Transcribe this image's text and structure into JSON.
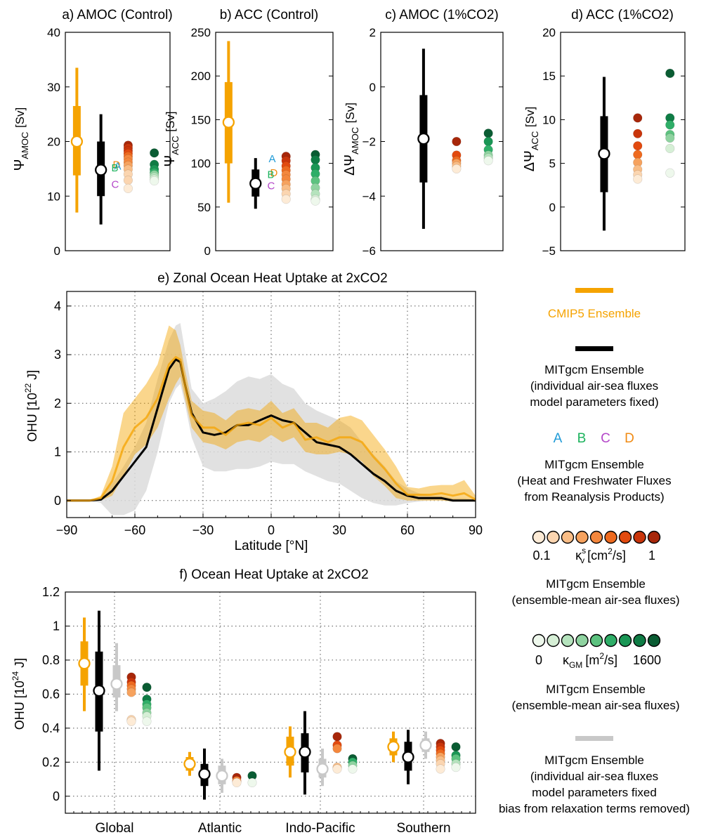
{
  "colors": {
    "cmip5": "#f5a300",
    "mitgcm": "#000000",
    "nobias": "#c8c8c8",
    "band_cmip5": "#f5a300",
    "band_nobias": "#dcdcdc",
    "A": "#1f9bd7",
    "B": "#1bb25c",
    "C": "#b447c9",
    "D": "#f08a12",
    "kv_scale": [
      "#fdebd6",
      "#fbd5b0",
      "#f9bd86",
      "#f6a25e",
      "#f4873d",
      "#ee6a1f",
      "#e24a0f",
      "#c9350b",
      "#a7270a"
    ],
    "kgm_scale": [
      "#eef8ec",
      "#d6efd6",
      "#b5e3bd",
      "#8fd3a0",
      "#5cc27f",
      "#2fae68",
      "#1a9655",
      "#0f7c45",
      "#0a5c33"
    ]
  },
  "chart_data": [
    {
      "id": "a",
      "type": "box-dot",
      "title": "a) AMOC (Control)",
      "ylabel": "Ψ_AMOC [Sv]",
      "ylabel_main": "Ψ",
      "ylabel_sub": "AMOC",
      "ylabel_unit": "[Sv]",
      "ylim": [
        0,
        40
      ],
      "yticks": [
        0,
        10,
        20,
        30,
        40
      ],
      "cmip5": {
        "whisker": [
          7,
          33.5
        ],
        "box": [
          13.8,
          26.5
        ],
        "mid": 20
      },
      "mitgcm": {
        "whisker": [
          4.8,
          25
        ],
        "box": [
          10,
          20
        ],
        "mid": 14.8
      },
      "labels": [
        {
          "text": "D",
          "y": 15.9
        },
        {
          "text": "A",
          "y": 15.6
        },
        {
          "text": "B",
          "y": 15.3
        },
        {
          "text": "C",
          "y": 12.3
        }
      ],
      "kv_points": [
        19.3,
        18.8,
        18.3,
        17.8,
        17.3,
        16.8,
        16.2,
        15.6,
        14.9,
        14.0,
        12.9,
        11.4
      ],
      "kgm_points": [
        17.9,
        15.8,
        14.9,
        14.3,
        13.9,
        13.5,
        13.1,
        12.8
      ]
    },
    {
      "id": "b",
      "type": "box-dot",
      "title": "b) ACC (Control)",
      "ylabel": "Ψ_ACC [Sv]",
      "ylabel_main": "Ψ",
      "ylabel_sub": "ACC",
      "ylabel_unit": "[Sv]",
      "ylim": [
        0,
        250
      ],
      "yticks": [
        0,
        50,
        100,
        150,
        200,
        250
      ],
      "cmip5": {
        "whisker": [
          55,
          240
        ],
        "box": [
          100,
          193
        ],
        "mid": 147
      },
      "mitgcm": {
        "whisker": [
          48,
          106
        ],
        "box": [
          62,
          93
        ],
        "mid": 77
      },
      "labels": [
        {
          "text": "A",
          "y": 106
        },
        {
          "text": "D",
          "y": 90
        },
        {
          "text": "B",
          "y": 88
        },
        {
          "text": "C",
          "y": 75
        }
      ],
      "kv_points": [
        108,
        103,
        97,
        92,
        87,
        82,
        76,
        71,
        65,
        59
      ],
      "kgm_points": [
        110,
        104,
        95,
        88,
        80,
        72,
        65,
        59,
        57
      ]
    },
    {
      "id": "c",
      "type": "box-dot",
      "title": "c) AMOC (1%CO2)",
      "ylabel": "ΔΨ_AMOC [Sv]",
      "ylabel_main": "ΔΨ",
      "ylabel_sub": "AMOC",
      "ylabel_unit": "[Sv]",
      "ylim": [
        -6,
        2
      ],
      "yticks": [
        -6,
        -4,
        -2,
        0,
        2
      ],
      "cmip5": null,
      "mitgcm": {
        "whisker": [
          -5.2,
          1.4
        ],
        "box": [
          -3.5,
          -0.3
        ],
        "mid": -1.9
      },
      "labels": [],
      "kv_points": [
        -2.0,
        -2.5,
        -2.7,
        -2.8,
        -2.9,
        -3.0
      ],
      "kgm_points": [
        -1.7,
        -2.0,
        -2.3,
        -2.5,
        -2.6,
        -2.7
      ]
    },
    {
      "id": "d",
      "type": "box-dot",
      "title": "d) ACC (1%CO2)",
      "ylabel": "ΔΨ_ACC [Sv]",
      "ylabel_main": "ΔΨ",
      "ylabel_sub": "ACC",
      "ylabel_unit": "[Sv]",
      "ylim": [
        -5,
        20
      ],
      "yticks": [
        -5,
        0,
        5,
        10,
        15,
        20
      ],
      "cmip5": null,
      "mitgcm": {
        "whisker": [
          -2.7,
          14.9
        ],
        "box": [
          1.7,
          10.4
        ],
        "mid": 6.1
      },
      "labels": [],
      "kv_points": [
        10.2,
        8.4,
        7.0,
        6.0,
        5.1,
        4.3,
        3.7,
        3.2
      ],
      "kgm_points": [
        15.3,
        10.2,
        9.4,
        8.3,
        7.9,
        6.7,
        3.9
      ]
    },
    {
      "id": "e",
      "type": "line",
      "title": "e) Zonal Ocean Heat Uptake at 2xCO2",
      "xlabel": "Latitude [°N]",
      "xlabel_main": "Latitude",
      "xlabel_unit": "[°N]",
      "ylabel": "OHU [10^22 J]",
      "ylabel_main": "OHU [10",
      "ylabel_exp": "22",
      "ylabel_unit": "J]",
      "xlim": [
        -90,
        90
      ],
      "ylim": [
        -0.35,
        4.3
      ],
      "xticks": [
        -90,
        -60,
        -30,
        0,
        30,
        60,
        90
      ],
      "xticklabels": [
        "−90",
        "−60",
        "−30",
        "0",
        "30",
        "60",
        "90"
      ],
      "yticks": [
        0,
        1,
        2,
        3,
        4
      ],
      "x": [
        -90,
        -80,
        -75,
        -70,
        -65,
        -60,
        -55,
        -50,
        -45,
        -42,
        -40,
        -38,
        -35,
        -30,
        -25,
        -20,
        -15,
        -10,
        -5,
        0,
        5,
        10,
        15,
        20,
        25,
        30,
        35,
        40,
        45,
        50,
        55,
        60,
        65,
        70,
        75,
        80,
        85,
        90
      ],
      "series": [
        {
          "key": "cmip5_mean",
          "color": "cmip5",
          "y": [
            0,
            0,
            0.05,
            0.4,
            1.1,
            1.5,
            1.7,
            2.1,
            2.8,
            2.95,
            2.9,
            2.4,
            1.75,
            1.5,
            1.5,
            1.35,
            1.55,
            1.6,
            1.55,
            1.7,
            1.5,
            1.6,
            1.25,
            1.3,
            1.2,
            1.3,
            1.3,
            1.2,
            0.9,
            0.65,
            0.35,
            0.12,
            0.12,
            0.12,
            0.15,
            0.1,
            0.15,
            0.02
          ]
        },
        {
          "key": "cmip5_upper",
          "color": "cmip5",
          "y": [
            0,
            0,
            0.1,
            0.7,
            1.8,
            2.1,
            2.4,
            2.8,
            3.6,
            3.5,
            3.2,
            2.7,
            2.05,
            1.85,
            1.8,
            1.65,
            1.85,
            1.9,
            1.85,
            2.05,
            1.8,
            1.9,
            1.6,
            1.6,
            1.5,
            1.7,
            1.75,
            1.65,
            1.35,
            1.05,
            0.7,
            0.28,
            0.25,
            0.3,
            0.32,
            0.32,
            0.42,
            0.1
          ]
        },
        {
          "key": "cmip5_lower",
          "color": "cmip5",
          "y": [
            0,
            0,
            0,
            0.1,
            0.5,
            0.95,
            1.15,
            1.5,
            2.1,
            2.4,
            2.55,
            2.1,
            1.5,
            1.2,
            1.15,
            1.05,
            1.2,
            1.25,
            1.2,
            1.35,
            1.2,
            1.3,
            1.0,
            0.95,
            0.95,
            1.0,
            0.95,
            0.8,
            0.5,
            0.3,
            0.05,
            0,
            0,
            0,
            0,
            -0.02,
            -0.02,
            -0.02
          ]
        },
        {
          "key": "mitgcm_mean",
          "color": "mitgcm",
          "y": [
            0,
            0,
            0.02,
            0.2,
            0.5,
            0.8,
            1.1,
            1.9,
            2.7,
            2.9,
            2.85,
            2.4,
            1.8,
            1.4,
            1.35,
            1.4,
            1.55,
            1.55,
            1.65,
            1.75,
            1.65,
            1.6,
            1.4,
            1.2,
            1.15,
            1.1,
            0.95,
            0.75,
            0.55,
            0.4,
            0.2,
            0.1,
            0.05,
            0.05,
            0.05,
            0.0,
            0.0,
            0.0
          ]
        },
        {
          "key": "nobias_upper",
          "color": "nobias",
          "y": [
            0,
            0,
            0.05,
            0.35,
            0.7,
            1.1,
            1.6,
            2.5,
            3.3,
            3.6,
            3.65,
            3.1,
            2.3,
            2.0,
            2.1,
            2.25,
            2.45,
            2.55,
            2.5,
            2.6,
            2.4,
            2.3,
            2.0,
            1.85,
            1.75,
            1.65,
            1.5,
            1.2,
            0.95,
            0.7,
            0.4,
            0.25,
            0.15,
            0.1,
            0.1,
            0.05,
            0.05,
            0.02
          ]
        },
        {
          "key": "nobias_lower",
          "color": "nobias",
          "y": [
            0,
            0,
            -0.05,
            -0.3,
            -0.3,
            -0.2,
            0.2,
            1.0,
            2.0,
            2.3,
            2.4,
            2.0,
            1.3,
            0.7,
            0.6,
            0.6,
            0.65,
            0.65,
            0.7,
            0.8,
            0.75,
            0.75,
            0.6,
            0.5,
            0.4,
            0.35,
            0.2,
            0.05,
            -0.05,
            -0.1,
            -0.1,
            -0.05,
            -0.02,
            0,
            0,
            0,
            0,
            0
          ]
        }
      ]
    },
    {
      "id": "f",
      "type": "box-dot",
      "title": "f) Ocean Heat Uptake at 2xCO2",
      "ylabel": "OHU [10^24 J]",
      "ylabel_main": "OHU [10",
      "ylabel_exp": "24",
      "ylabel_unit": "J]",
      "ylim": [
        -0.1,
        1.2
      ],
      "yticks": [
        0,
        0.2,
        0.4,
        0.6,
        0.8,
        1,
        1.2
      ],
      "yticklabels": [
        "0",
        "0.2",
        "0.4",
        "0.6",
        "0.8",
        "1",
        "1.2"
      ],
      "categories": [
        "Global",
        "Atlantic",
        "Indo-Pacific",
        "Southern"
      ],
      "groups": [
        {
          "cmip5": {
            "whisker": [
              0.5,
              1.05
            ],
            "box": [
              0.65,
              0.91
            ],
            "mid": 0.78
          },
          "mitgcm": {
            "whisker": [
              0.15,
              1.09
            ],
            "box": [
              0.38,
              0.85
            ],
            "mid": 0.62
          },
          "nobias": {
            "whisker": [
              0.5,
              0.9
            ],
            "box": [
              0.58,
              0.77
            ],
            "mid": 0.66
          },
          "kv_points": [
            0.7,
            0.67,
            0.65,
            0.63,
            0.61,
            0.45,
            0.44
          ],
          "kgm_points": [
            0.64,
            0.57,
            0.54,
            0.52,
            0.49,
            0.47,
            0.44
          ]
        },
        {
          "cmip5": {
            "whisker": [
              0.12,
              0.26
            ],
            "box": [
              0.15,
              0.23
            ],
            "mid": 0.19
          },
          "mitgcm": {
            "whisker": [
              -0.02,
              0.28
            ],
            "box": [
              0.06,
              0.19
            ],
            "mid": 0.13
          },
          "nobias": {
            "whisker": [
              0.02,
              0.22
            ],
            "box": [
              0.07,
              0.18
            ],
            "mid": 0.12
          },
          "kv_points": [
            0.11,
            0.09,
            0.08
          ],
          "kgm_points": [
            0.12,
            0.08
          ]
        },
        {
          "cmip5": {
            "whisker": [
              0.11,
              0.41
            ],
            "box": [
              0.18,
              0.35
            ],
            "mid": 0.26
          },
          "mitgcm": {
            "whisker": [
              0.01,
              0.5
            ],
            "box": [
              0.14,
              0.37
            ],
            "mid": 0.26
          },
          "nobias": {
            "whisker": [
              0.06,
              0.28
            ],
            "box": [
              0.11,
              0.22
            ],
            "mid": 0.16
          },
          "kv_points": [
            0.35,
            0.3,
            0.28,
            0.17,
            0.16
          ],
          "kgm_points": [
            0.22,
            0.2,
            0.18,
            0.16
          ]
        },
        {
          "cmip5": {
            "whisker": [
              0.2,
              0.38
            ],
            "box": [
              0.24,
              0.34
            ],
            "mid": 0.29
          },
          "mitgcm": {
            "whisker": [
              0.07,
              0.39
            ],
            "box": [
              0.15,
              0.32
            ],
            "mid": 0.23
          },
          "nobias": {
            "whisker": [
              0.22,
              0.38
            ],
            "box": [
              0.26,
              0.34
            ],
            "mid": 0.3
          },
          "kv_points": [
            0.31,
            0.29,
            0.27,
            0.25,
            0.23,
            0.21,
            0.19,
            0.16
          ],
          "kgm_points": [
            0.29,
            0.24,
            0.22,
            0.19,
            0.17
          ]
        }
      ]
    }
  ],
  "legend": {
    "cmip5": {
      "label": "CMIP5 Ensemble"
    },
    "mitgcm": {
      "lines": [
        "MITgcm Ensemble",
        "(individual air-sea fluxes",
        "model parameters fixed)"
      ]
    },
    "reanalysis": {
      "letters": [
        "A",
        "B",
        "C",
        "D"
      ],
      "lines": [
        "MITgcm Ensemble",
        "(Heat and Freshwater Fluxes",
        "from Reanalysis Products)"
      ]
    },
    "kv": {
      "min": "0.1",
      "max": "1",
      "symbol": "κ",
      "sub": "v",
      "sup": "s",
      "unit": "[cm",
      "unit_exp": "2",
      "unit_end": "/s]",
      "lines": [
        "MITgcm Ensemble",
        "(ensemble-mean air-sea fluxes)"
      ]
    },
    "kgm": {
      "min": "0",
      "max": "1600",
      "symbol": "κ",
      "sub": "GM",
      "unit": "[m",
      "unit_exp": "2",
      "unit_end": "/s]",
      "lines": [
        "MITgcm Ensemble",
        "(ensemble-mean air-sea fluxes)"
      ]
    },
    "nobias": {
      "lines": [
        "MITgcm Ensemble",
        "(individual air-sea fluxes",
        "model parameters fixed",
        "bias from relaxation terms removed)"
      ]
    }
  }
}
